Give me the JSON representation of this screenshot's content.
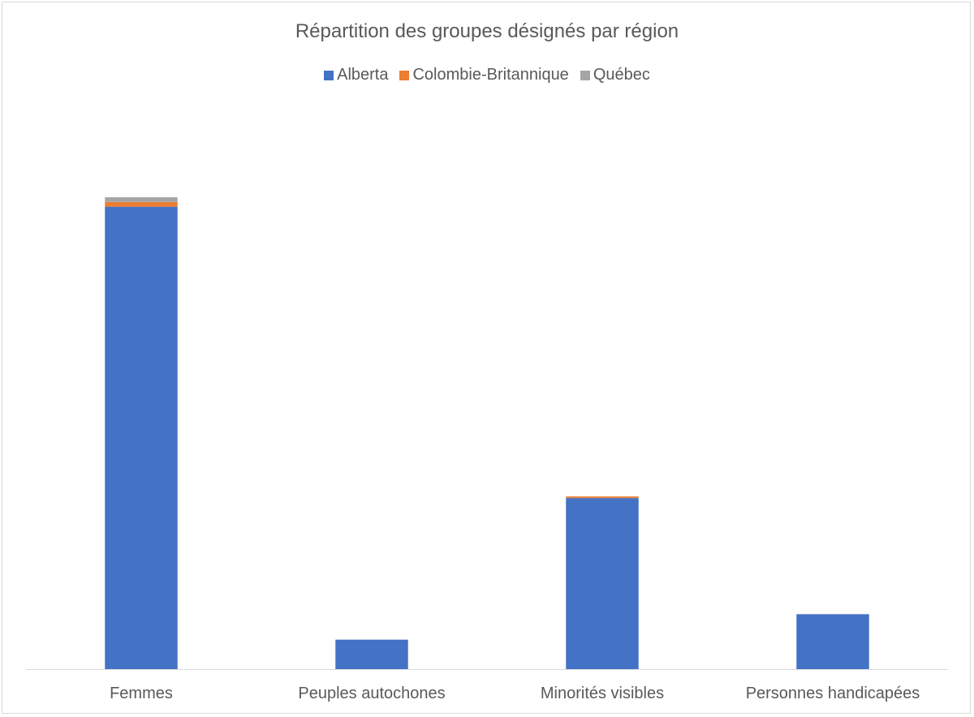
{
  "chart_data": {
    "type": "bar",
    "stacked": true,
    "title": "Répartition des groupes désignés par région",
    "legend_position": "top",
    "categories": [
      "Femmes",
      "Peuples autochones",
      "Minorités visibles",
      "Personnes handicapées"
    ],
    "series": [
      {
        "name": "Alberta",
        "color": "#4472c4",
        "values": [
          581,
          37,
          215,
          69
        ]
      },
      {
        "name": "Colombie-Britannique",
        "color": "#ed7d31",
        "values": [
          6,
          0,
          2,
          0
        ]
      },
      {
        "name": "Québec",
        "color": "#a5a5a5",
        "values": [
          6,
          0,
          0,
          0
        ]
      }
    ],
    "ylim": [
      0,
      700
    ],
    "grid": false,
    "xlabel": "",
    "ylabel": ""
  }
}
